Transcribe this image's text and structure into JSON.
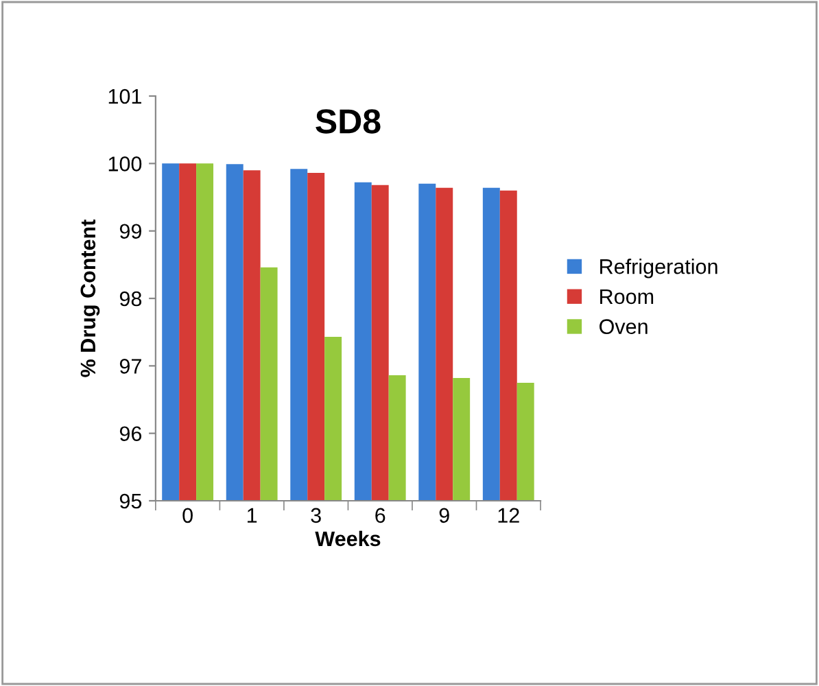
{
  "chart_data": {
    "type": "bar",
    "title": "SD8",
    "xlabel": "Weeks",
    "ylabel": "% Drug Content",
    "categories": [
      "0",
      "1",
      "3",
      "6",
      "9",
      "12"
    ],
    "series": [
      {
        "name": "Refrigeration",
        "color": "#3a7fd5",
        "values": [
          100,
          99.99,
          99.92,
          99.72,
          99.7,
          99.64
        ]
      },
      {
        "name": "Room",
        "color": "#d63b36",
        "values": [
          100,
          99.9,
          99.86,
          99.68,
          99.64,
          99.6
        ]
      },
      {
        "name": "Oven",
        "color": "#96c93d",
        "values": [
          100,
          98.46,
          97.43,
          96.86,
          96.82,
          96.75
        ]
      }
    ],
    "ylim": [
      95,
      101
    ],
    "yticks": [
      95,
      96,
      97,
      98,
      99,
      100,
      101
    ],
    "grid": false,
    "legend": "right"
  }
}
